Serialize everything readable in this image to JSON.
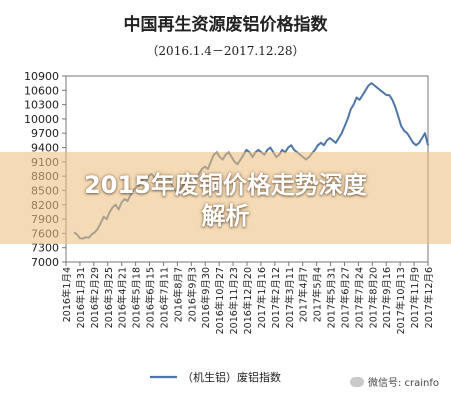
{
  "chart_data": {
    "type": "line",
    "title": "中国再生资源废铝价格指数",
    "subtitle": "（2016.1.4－2017.12.28）",
    "ylim": [
      7000,
      10900
    ],
    "yticks": [
      10900,
      10600,
      10300,
      10000,
      9700,
      9400,
      9100,
      8800,
      8500,
      8200,
      7900,
      7600,
      7300,
      7000
    ],
    "x_ticks": [
      "2016年1月4",
      "2016年1月31",
      "2016年2月29",
      "2016年3月25",
      "2016年4月21",
      "2016年5月18",
      "2016年6月15",
      "2016年7月11",
      "2016年8月7",
      "2016年9月3",
      "2016年9月30",
      "2016年10月27",
      "2016年11月23",
      "2016年12月20",
      "2017年1月16",
      "2017年2月12",
      "2017年3月11",
      "2017年4月7",
      "2017年5月4",
      "2017年5月31",
      "2017年6月27",
      "2017年7月24",
      "2017年8月20",
      "2017年9月16",
      "2017年10月13",
      "2017年11月9",
      "2017年12月6"
    ],
    "grid": false,
    "legend_position": "bottom",
    "series": [
      {
        "name": "（机生铝）废铝指数",
        "color": "#4f76a8",
        "values": [
          7620,
          7580,
          7500,
          7490,
          7520,
          7510,
          7580,
          7620,
          7700,
          7820,
          7950,
          7900,
          8050,
          8150,
          8200,
          8100,
          8250,
          8320,
          8280,
          8400,
          8500,
          8580,
          8600,
          8720,
          8650,
          8800,
          8850,
          8780,
          8700,
          8650,
          8720,
          8800,
          8750,
          8600,
          8500,
          8450,
          8550,
          8650,
          8750,
          8800,
          8700,
          8750,
          8850,
          8950,
          9000,
          8950,
          9100,
          9250,
          9300,
          9200,
          9150,
          9250,
          9300,
          9200,
          9100,
          9050,
          9150,
          9250,
          9350,
          9300,
          9200,
          9300,
          9350,
          9300,
          9250,
          9350,
          9400,
          9300,
          9200,
          9250,
          9350,
          9300,
          9400,
          9450,
          9350,
          9300,
          9250,
          9200,
          9150,
          9200,
          9280,
          9350,
          9450,
          9500,
          9450,
          9550,
          9600,
          9550,
          9500,
          9600,
          9700,
          9850,
          10000,
          10200,
          10300,
          10450,
          10400,
          10500,
          10600,
          10700,
          10750,
          10700,
          10650,
          10600,
          10550,
          10500,
          10500,
          10400,
          10250,
          10050,
          9850,
          9750,
          9700,
          9600,
          9500,
          9450,
          9500,
          9600,
          9700,
          9450
        ]
      }
    ]
  },
  "overlay": {
    "line1": "2015年废铜价格走势深度",
    "line2": "解析"
  },
  "watermark": {
    "text": "微信号: crainfo",
    "icon": "wechat-icon"
  }
}
